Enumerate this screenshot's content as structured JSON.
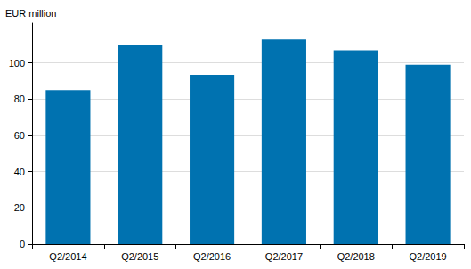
{
  "chart_data": {
    "type": "bar",
    "y_label": "EUR million",
    "categories": [
      "Q2/2014",
      "Q2/2015",
      "Q2/2016",
      "Q2/2017",
      "Q2/2018",
      "Q2/2019"
    ],
    "values": [
      85,
      110,
      93.5,
      113,
      107,
      99
    ],
    "color": "#0072b0",
    "ylim": [
      0,
      122
    ],
    "yticks": [
      0,
      20,
      40,
      60,
      80,
      100
    ],
    "grid": true
  }
}
